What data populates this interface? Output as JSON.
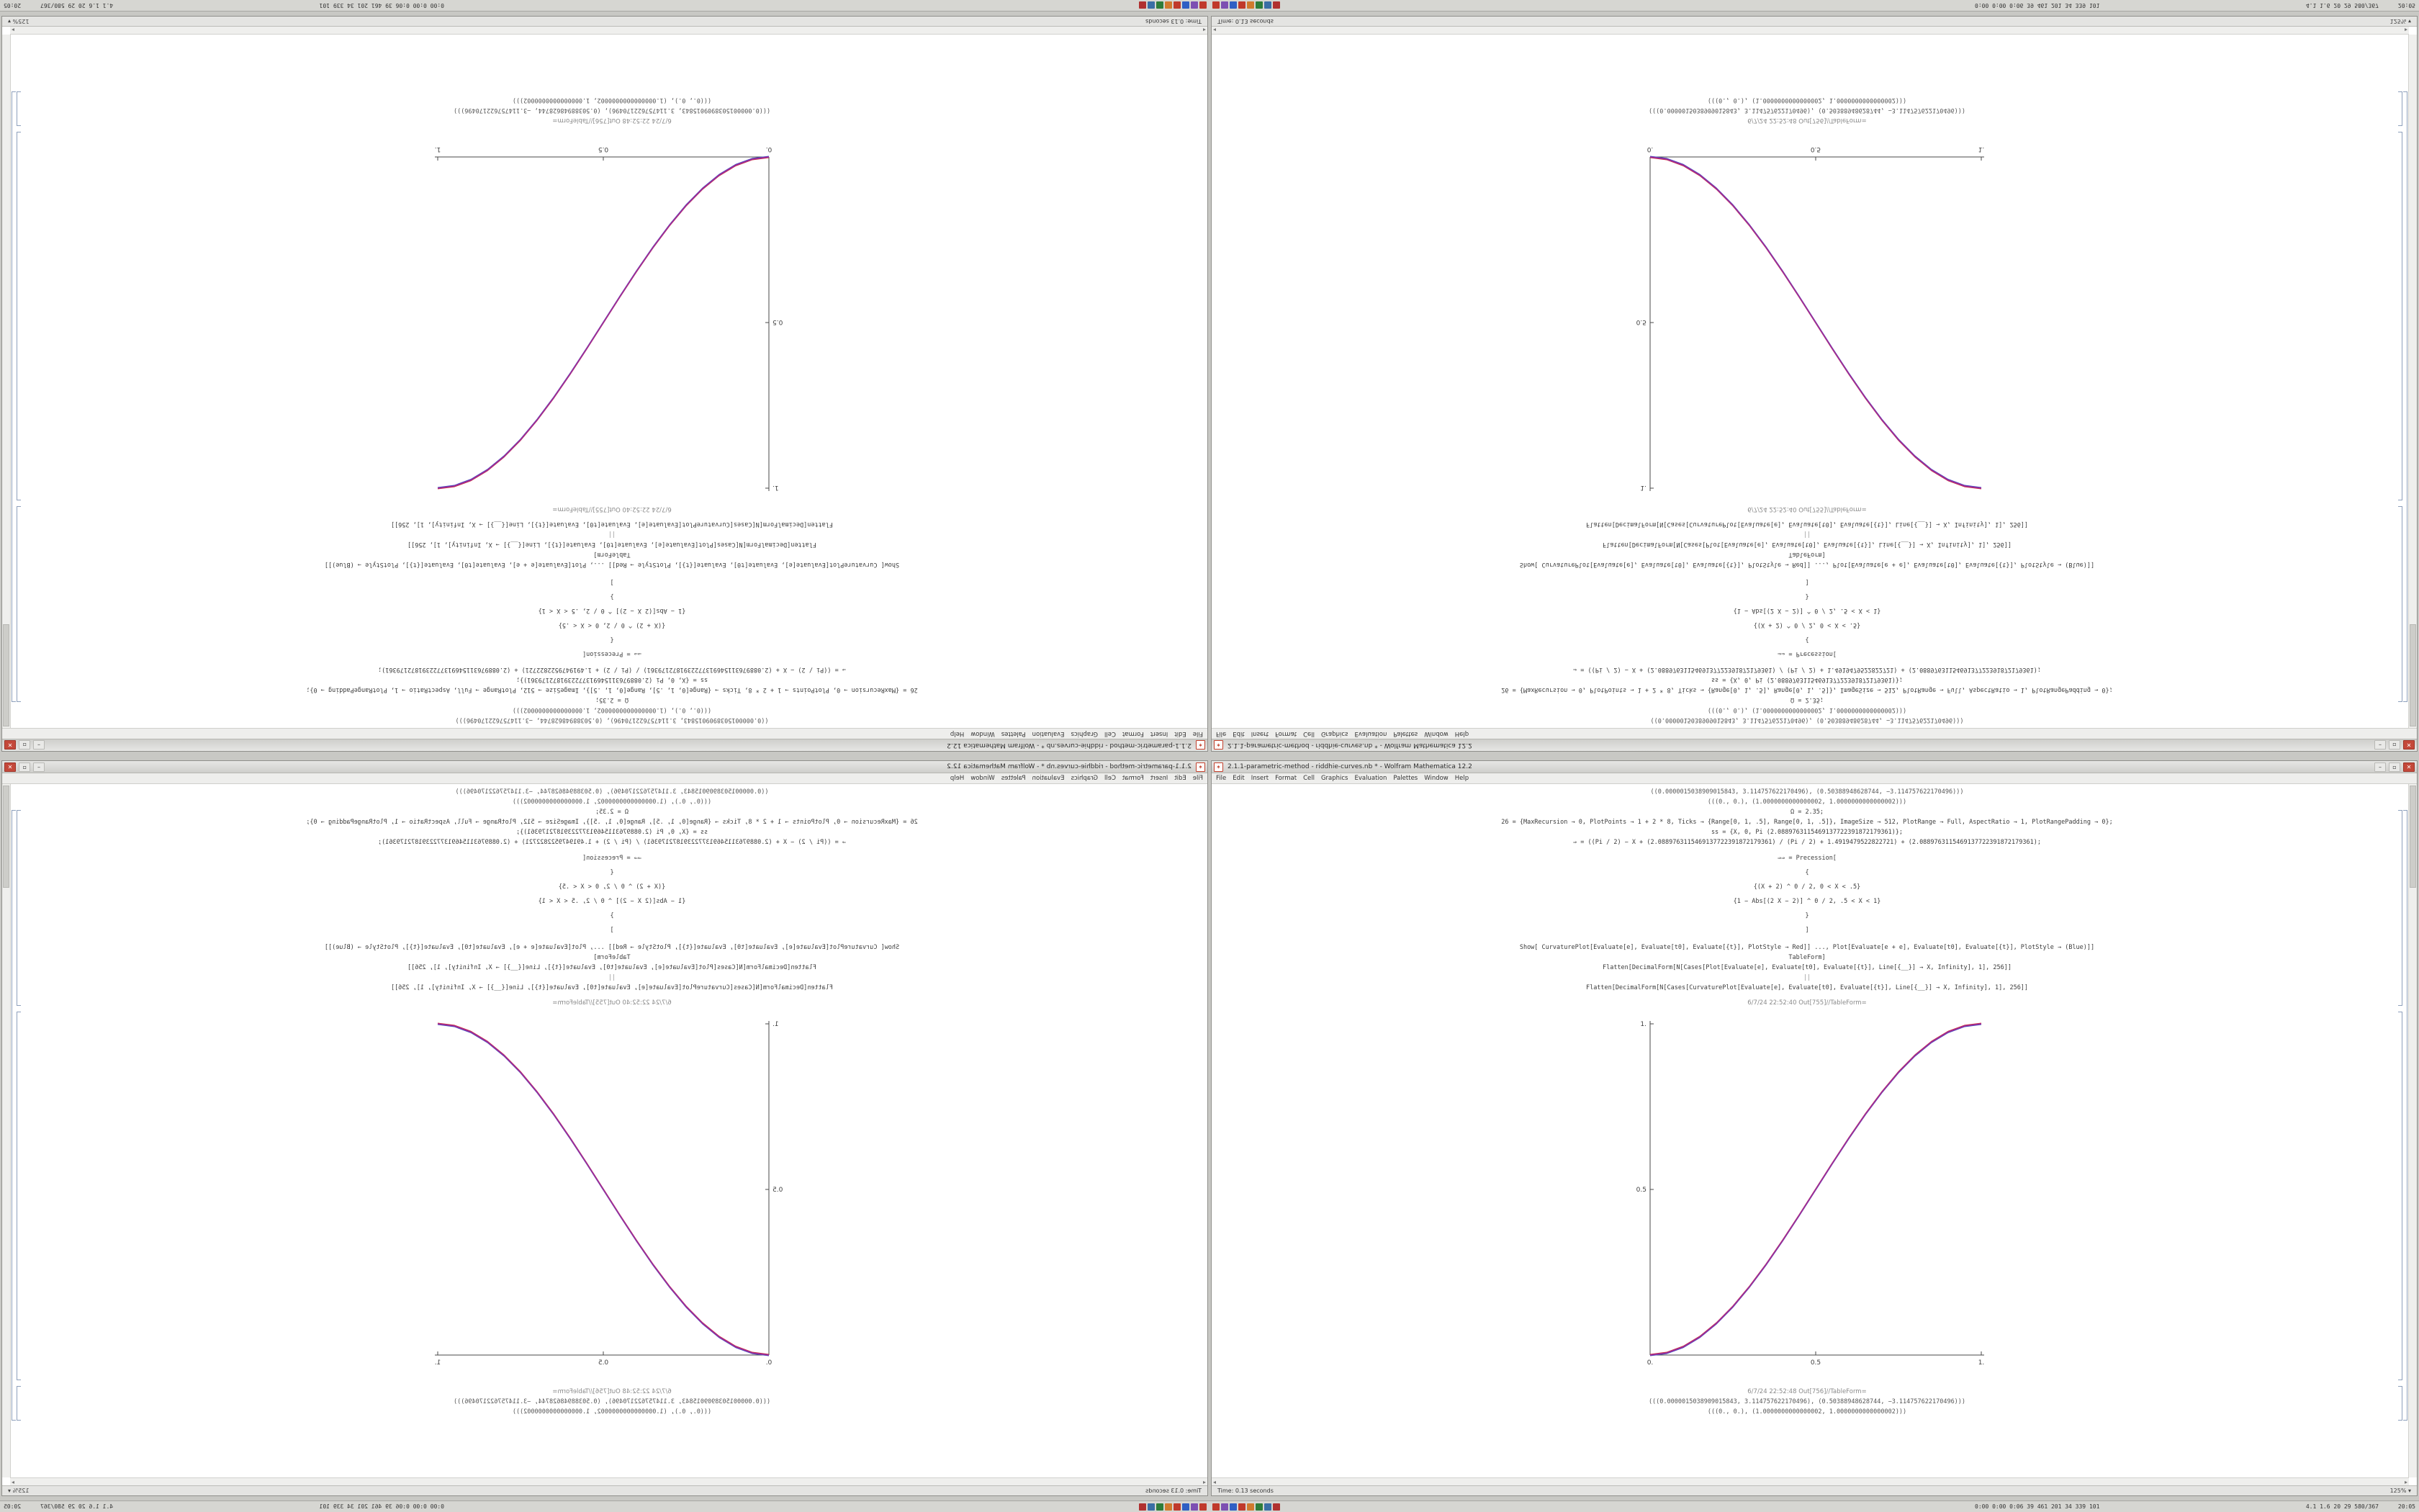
{
  "app": {
    "name": "Wolfram Mathematica",
    "version": "12.2"
  },
  "window": {
    "title": "2.1.1-parametric-method - riddhie-curves.nb * - Wolfram Mathematica 12.2",
    "app_icon": "✶",
    "controls": {
      "minimize": "–",
      "maximize": "▫",
      "close": "✕"
    },
    "menu": [
      "File",
      "Edit",
      "Insert",
      "Format",
      "Cell",
      "Graphics",
      "Evaluation",
      "Palettes",
      "Window",
      "Help"
    ],
    "status": {
      "time": "Time: 0.13 seconds",
      "zoom": "125%",
      "zoom_caret": "▾"
    },
    "hscroll": {
      "left_arrow": "◂",
      "right_arrow": "▸"
    }
  },
  "notebook": {
    "top_outputs": [
      "((0.0000015038909015843, 3.114757622170496), (0.50388948628744, −3.114757622170496)))",
      "(((0., 0.), (1.0000000000000002, 1.0000000000000002)))"
    ],
    "code_lines": [
      "Ω = 2.35;",
      "26 = {MaxRecursion → 0, PlotPoints → 1 + 2 * 8, Ticks → {Range[0, 1, .5], Range[0, 1, .5]}, ImageSize → 512, PlotRange → Full, AspectRatio → 1, PlotRangePadding → 0};",
      "ss = {X, 0, Pi (2.0889763115469137722391872179361)};",
      "⇒ = ((Pi / 2) − X + (2.0889763115469137722391872179361) / (Pi / 2) + 1.4919479522822721) + (2.0889763115469137722391872179361);",
      "⇒⇒ = Precession[",
      "{",
      "{(X + 2) ^ 0 / 2, 0 < X < .5}",
      "{1 − Abs[(2 X − 2)] ^ 0 / 2, .5 < X < 1}",
      "}",
      "]",
      "Show[  CurvaturePlot[Evaluate[e], Evaluate[t0], Evaluate[{t}], PlotStyle → Red]] ...,  Plot[Evaluate[e + e], Evaluate[t0], Evaluate[{t}], PlotStyle → (Blue)]]",
      "TableForm]",
      "Flatten[DecimalForm[N[Cases[Plot[Evaluate[e], Evaluate[t0], Evaluate[{t}], Line[{__}] → X, Infinity], 1], 256]]",
      "||",
      "Flatten[DecimalForm[N[Cases[CurvaturePlot[Evaluate[e], Evaluate[t0], Evaluate[{t}], Line[{__}] → X, Infinity], 1], 256]]"
    ],
    "caption_above": "6/7/24 22:52:40  Out[755]//TableForm=",
    "caption_below": "6/7/24 22:52:48  Out[756]//TableForm=",
    "bottom_outputs": [
      "(((0.0000015038909015843, 3.114757622170496), (0.50388948628744, −3.114757622170496)))",
      "(((0., 0.), (1.0000000000000002, 1.0000000000000002)))"
    ]
  },
  "taskbar": {
    "tray_colors": [
      "#c0392b",
      "#7d4fb2",
      "#2f5fc4",
      "#c0392b",
      "#d07a2e",
      "#2e7d3a",
      "#3a6ea5",
      "#b03030"
    ],
    "stats_a": "0:00 0:00 0:06 39 461 201 34 339 101",
    "stats_b": "4.1 1.6 20 29 580/367",
    "clock": "20:05"
  },
  "chart_data": {
    "type": "line",
    "title": "",
    "xlabel": "",
    "ylabel": "",
    "xlim": [
      0,
      1
    ],
    "ylim": [
      0,
      1
    ],
    "xticks": [
      0,
      0.5,
      1
    ],
    "xtick_labels": [
      "0.",
      "0.5",
      "1."
    ],
    "yticks": [
      0.5,
      1
    ],
    "ytick_labels": [
      "0.5",
      "1."
    ],
    "grid": false,
    "legend": "none",
    "axes_style": "left-and-bottom-axes",
    "blend_color": "#9b2d9b",
    "x": [
      0,
      0.05,
      0.1,
      0.15,
      0.2,
      0.25,
      0.3,
      0.35,
      0.4,
      0.45,
      0.5,
      0.55,
      0.6,
      0.65,
      0.7,
      0.75,
      0.8,
      0.85,
      0.9,
      0.95,
      1
    ],
    "series": [
      {
        "name": "CurvaturePlot",
        "color": "#cc2936",
        "y": [
          0,
          0.0062,
          0.0245,
          0.0545,
          0.0955,
          0.1464,
          0.2061,
          0.273,
          0.3455,
          0.4218,
          0.5,
          0.5782,
          0.6545,
          0.727,
          0.7939,
          0.8536,
          0.9045,
          0.9455,
          0.9755,
          0.9938,
          1
        ]
      },
      {
        "name": "Plot",
        "color": "#3b4cc0",
        "y": [
          0,
          0.0062,
          0.0245,
          0.0545,
          0.0955,
          0.1464,
          0.2061,
          0.273,
          0.3455,
          0.4218,
          0.5,
          0.5782,
          0.6545,
          0.727,
          0.7939,
          0.8536,
          0.9045,
          0.9455,
          0.9755,
          0.9938,
          1
        ]
      }
    ]
  }
}
